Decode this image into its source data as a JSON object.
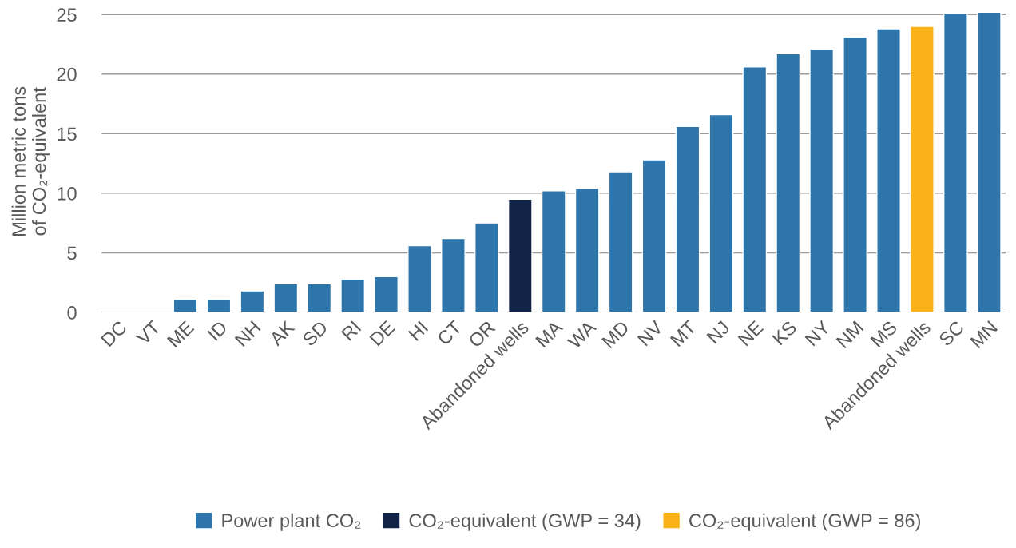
{
  "chart_data": {
    "type": "bar",
    "ylabel": "Million metric tons\nof CO₂-equivalent",
    "categories": [
      "DC",
      "VT",
      "ME",
      "ID",
      "NH",
      "AK",
      "SD",
      "RI",
      "DE",
      "HI",
      "CT",
      "OR",
      "Abandoned wells",
      "MA",
      "WA",
      "MD",
      "NV",
      "MT",
      "NJ",
      "NE",
      "KS",
      "NY",
      "NM",
      "MS",
      "Abandoned wells",
      "SC",
      "MN"
    ],
    "series": [
      {
        "name": "Power plant CO₂",
        "color": "#2e75ab",
        "values": [
          null,
          null,
          1.1,
          1.1,
          1.8,
          2.4,
          2.4,
          2.8,
          3.0,
          5.6,
          6.2,
          7.5,
          null,
          10.2,
          10.4,
          11.8,
          12.8,
          15.6,
          16.6,
          20.6,
          21.7,
          22.1,
          23.1,
          23.8,
          null,
          25.1,
          25.2
        ]
      },
      {
        "name": "CO₂-equivalent (GWP = 34)",
        "color": "#112347",
        "values": [
          null,
          null,
          null,
          null,
          null,
          null,
          null,
          null,
          null,
          null,
          null,
          null,
          9.5,
          null,
          null,
          null,
          null,
          null,
          null,
          null,
          null,
          null,
          null,
          null,
          null,
          null,
          null
        ]
      },
      {
        "name": "CO₂-equivalent (GWP = 86)",
        "color": "#fbb118",
        "values": [
          null,
          null,
          null,
          null,
          null,
          null,
          null,
          null,
          null,
          null,
          null,
          null,
          null,
          null,
          null,
          null,
          null,
          null,
          null,
          null,
          null,
          null,
          null,
          null,
          24.0,
          null,
          null
        ]
      }
    ],
    "ylim": [
      0,
      25.3
    ],
    "yticks": [
      0,
      5,
      10,
      15,
      20,
      25
    ],
    "grid": "y",
    "legend": "bottom"
  }
}
